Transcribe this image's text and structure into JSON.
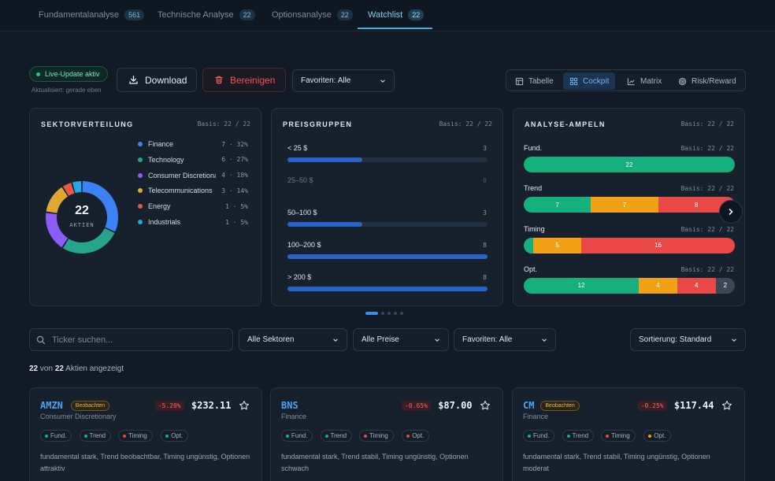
{
  "tabs": [
    {
      "label": "Fundamentalanalyse",
      "count": "561"
    },
    {
      "label": "Technische Analyse",
      "count": "22"
    },
    {
      "label": "Optionsanalyse",
      "count": "22"
    },
    {
      "label": "Watchlist",
      "count": "22"
    }
  ],
  "toolbar": {
    "live_label": "Live-Update aktiv",
    "updated": "Aktualisiert: gerade eben",
    "download": "Download",
    "clear": "Bereinigen",
    "favorites_filter": "Favoriten: Alle",
    "views": [
      "Tabelle",
      "Cockpit",
      "Matrix",
      "Risk/Reward"
    ],
    "active_view": "Cockpit"
  },
  "sector_card": {
    "title": "SEKTORVERTEILUNG",
    "basis": "Basis: 22 / 22",
    "total": "22",
    "total_label": "AKTIEN",
    "items": [
      {
        "name": "Finance",
        "stat": "7 · 32%",
        "count": 7,
        "color": "#3b82f6"
      },
      {
        "name": "Technology",
        "stat": "6 · 27%",
        "count": 6,
        "color": "#26a58c"
      },
      {
        "name": "Consumer Discretionary",
        "stat": "4 · 18%",
        "count": 4,
        "color": "#8b5cf6"
      },
      {
        "name": "Telecommunications",
        "stat": "3 · 14%",
        "count": 3,
        "color": "#e0a82e"
      },
      {
        "name": "Energy",
        "stat": "1 · 5%",
        "count": 1,
        "color": "#ea5a47"
      },
      {
        "name": "Industrials",
        "stat": "1 · 5%",
        "count": 1,
        "color": "#22a8e8"
      }
    ]
  },
  "price_card": {
    "title": "PREISGRUPPEN",
    "basis": "Basis: 22 / 22",
    "groups": [
      {
        "label": "< 25 $",
        "count": "3",
        "value": 3
      },
      {
        "label": "25–50 $",
        "count": "0",
        "value": 0
      },
      {
        "label": "50–100 $",
        "count": "3",
        "value": 3
      },
      {
        "label": "100–200 $",
        "count": "8",
        "value": 8
      },
      {
        "label": "> 200 $",
        "count": "8",
        "value": 8
      }
    ],
    "max": 8
  },
  "signal_card": {
    "title": "ANALYSE-AMPELN",
    "basis": "Basis: 22 / 22",
    "rows": [
      {
        "label": "Fund.",
        "basis": "Basis: 22 / 22",
        "segments": [
          {
            "value": 22,
            "color": "#16b07c"
          }
        ]
      },
      {
        "label": "Trend",
        "basis": "Basis: 22 / 22",
        "segments": [
          {
            "value": 7,
            "color": "#16b07c"
          },
          {
            "value": 7,
            "color": "#f0a114"
          },
          {
            "value": 8,
            "color": "#ea4747"
          }
        ]
      },
      {
        "label": "Timing",
        "basis": "Basis: 22 / 22",
        "segments": [
          {
            "value": 1,
            "label": "",
            "color": "#16b07c"
          },
          {
            "value": 5,
            "color": "#f0a114"
          },
          {
            "value": 16,
            "color": "#ea4747"
          }
        ]
      },
      {
        "label": "Opt.",
        "basis": "Basis: 22 / 22",
        "segments": [
          {
            "value": 12,
            "color": "#16b07c"
          },
          {
            "value": 4,
            "color": "#f0a114"
          },
          {
            "value": 4,
            "color": "#ea4747"
          },
          {
            "value": 2,
            "color": "#3b4656"
          }
        ]
      }
    ]
  },
  "filters": {
    "search_placeholder": "Ticker suchen...",
    "sector": "Alle Sektoren",
    "price": "Alle Preise",
    "favorites": "Favoriten: Alle",
    "sort": "Sortierung: Standard"
  },
  "result": {
    "shown": "22",
    "of": "von",
    "total": "22",
    "suffix": "Aktien angezeigt"
  },
  "stocks": [
    {
      "ticker": "AMZN",
      "badge": "Beobachten",
      "sector": "Consumer Discretionary",
      "change": "-5.20%",
      "price": "$232.11",
      "chips": [
        {
          "label": "Fund.",
          "color": "#16b07c"
        },
        {
          "label": "Trend",
          "color": "#16b07c"
        },
        {
          "label": "Timing",
          "color": "#ea4747"
        },
        {
          "label": "Opt.",
          "color": "#16b07c"
        }
      ],
      "desc": "fundamental stark, Trend beobachtbar, Timing ungünstig, Optionen attraktiv"
    },
    {
      "ticker": "BNS",
      "badge": "",
      "sector": "Finance",
      "change": "-0.65%",
      "price": "$87.00",
      "chips": [
        {
          "label": "Fund.",
          "color": "#16b07c"
        },
        {
          "label": "Trend",
          "color": "#16b07c"
        },
        {
          "label": "Timing",
          "color": "#ea4747"
        },
        {
          "label": "Opt.",
          "color": "#ea4747"
        }
      ],
      "desc": "fundamental stark, Trend stabil, Timing ungünstig, Optionen schwach"
    },
    {
      "ticker": "CM",
      "badge": "Beobachten",
      "sector": "Finance",
      "change": "-0.25%",
      "price": "$117.44",
      "chips": [
        {
          "label": "Fund.",
          "color": "#16b07c"
        },
        {
          "label": "Trend",
          "color": "#16b07c"
        },
        {
          "label": "Timing",
          "color": "#ea4747"
        },
        {
          "label": "Opt.",
          "color": "#f0a114"
        }
      ],
      "desc": "fundamental stark, Trend stabil, Timing ungünstig, Optionen moderat"
    }
  ]
}
